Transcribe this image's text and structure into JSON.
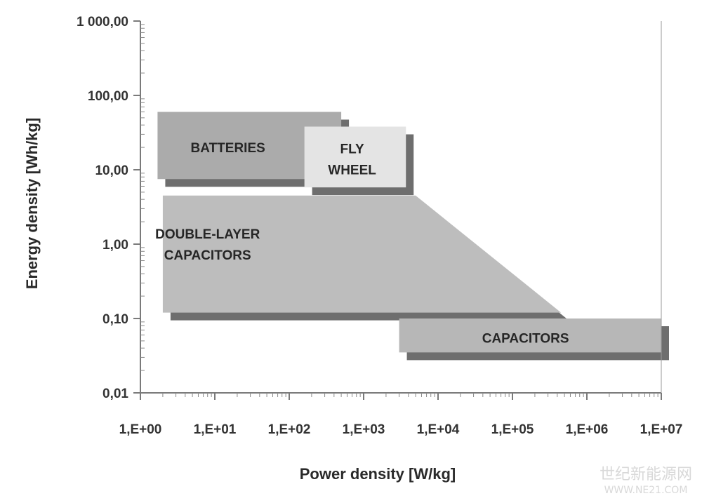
{
  "chart_data": {
    "type": "area",
    "title": "",
    "xlabel": "Power density [W/kg]",
    "ylabel": "Energy density [Wh/kg]",
    "x_scale": "log",
    "y_scale": "log",
    "xlim": [
      1,
      10000000
    ],
    "ylim": [
      0.01,
      1000
    ],
    "x_ticks": [
      {
        "value": 1,
        "label": "1,E+00"
      },
      {
        "value": 10,
        "label": "1,E+01"
      },
      {
        "value": 100,
        "label": "1,E+02"
      },
      {
        "value": 1000,
        "label": "1,E+03"
      },
      {
        "value": 10000,
        "label": "1,E+04"
      },
      {
        "value": 100000,
        "label": "1,E+05"
      },
      {
        "value": 1000000,
        "label": "1,E+06"
      },
      {
        "value": 10000000,
        "label": "1,E+07"
      }
    ],
    "y_ticks": [
      {
        "value": 0.01,
        "label": "0,01"
      },
      {
        "value": 0.1,
        "label": "0,10"
      },
      {
        "value": 1,
        "label": "1,00"
      },
      {
        "value": 10,
        "label": "10,00"
      },
      {
        "value": 100,
        "label": "100,00"
      },
      {
        "value": 1000,
        "label": "1 000,00"
      }
    ],
    "grid": false,
    "legend": "none",
    "regions": [
      {
        "label": [
          "DOUBLE-LAYER",
          "CAPACITORS"
        ],
        "color": "#bdbdbd",
        "polygon": [
          [
            2,
            4.5
          ],
          [
            5000,
            4.5
          ],
          [
            450000,
            0.12
          ],
          [
            2,
            0.12
          ]
        ],
        "label_at": [
          8,
          1.0
        ]
      },
      {
        "label": [
          "BATTERIES"
        ],
        "color": "#ababab",
        "polygon": [
          [
            1.7,
            60
          ],
          [
            500,
            60
          ],
          [
            500,
            7.5
          ],
          [
            1.7,
            7.5
          ]
        ],
        "label_at": [
          15,
          20
        ]
      },
      {
        "label": [
          "FLY",
          "WHEEL"
        ],
        "color": "#e4e4e4",
        "polygon": [
          [
            160,
            38
          ],
          [
            3700,
            38
          ],
          [
            3700,
            5.8
          ],
          [
            160,
            5.8
          ]
        ],
        "label_at": [
          700,
          14
        ]
      },
      {
        "label": [
          "CAPACITORS"
        ],
        "color": "#b7b7b7",
        "polygon": [
          [
            3000,
            0.1
          ],
          [
            10000000,
            0.1
          ],
          [
            10000000,
            0.035
          ],
          [
            3000,
            0.035
          ]
        ],
        "label_at": [
          150000,
          0.055
        ]
      }
    ]
  },
  "watermark": {
    "line1": "世纪新能源网",
    "line2": "WWW.NE21.COM"
  }
}
